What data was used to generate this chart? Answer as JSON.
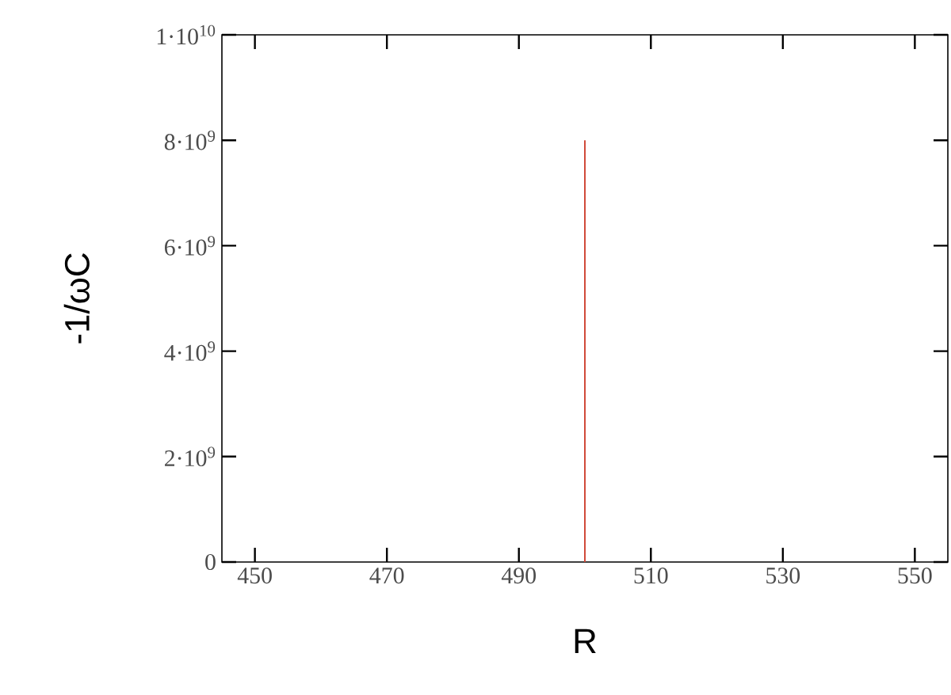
{
  "chart_data": {
    "type": "line",
    "xlabel": "R",
    "ylabel": "-1/ωC",
    "series": [
      {
        "color": "#d04a3a",
        "x": [
          500,
          500
        ],
        "values": [
          0,
          8000000000
        ]
      }
    ],
    "xlim": [
      445,
      555
    ],
    "xticks": [
      450,
      470,
      490,
      510,
      530,
      550
    ],
    "ylim": [
      0,
      10000000000
    ],
    "yticks": [
      0,
      {
        "value": 2000000000,
        "label": "2·10$^{9}$"
      },
      {
        "value": 4000000000,
        "label": "4·10$^{9}$"
      },
      {
        "value": 6000000000,
        "label": "6·10$^{9}$"
      },
      {
        "value": 8000000000,
        "label": "8·10$^{9}$"
      },
      {
        "value": 10000000000,
        "label": "1·10$^{10}$"
      }
    ],
    "marker": "none",
    "line_style": "solid"
  }
}
